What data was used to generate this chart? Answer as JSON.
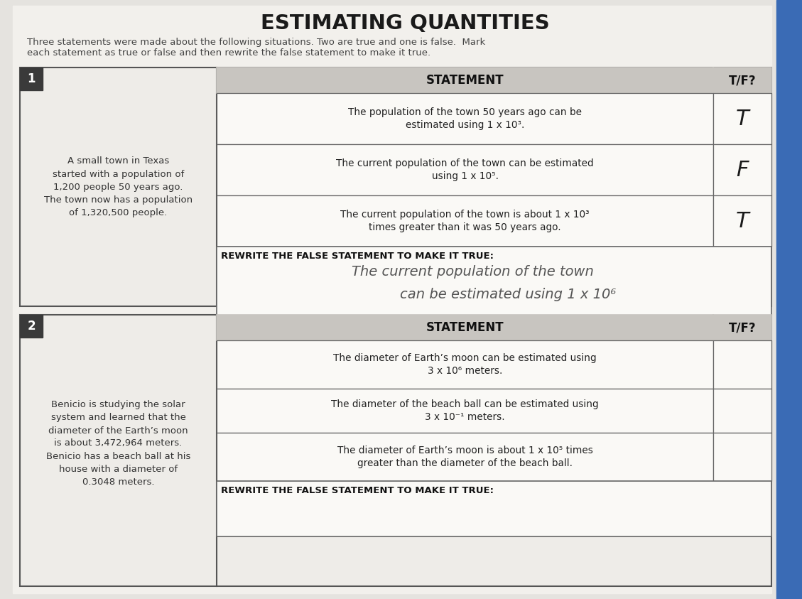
{
  "title": "ESTIMATING QUANTITIES",
  "subtitle_line1": "Three statements were made about the following situations. Two are true and one is false.  Mark",
  "subtitle_line2": "each statement as true or false and then rewrite the false statement to make it true.",
  "bg_color": "#e8e6e2",
  "section1": {
    "number": "1",
    "context_lines": [
      "A small town in Texas",
      "started with a population of",
      "1,200 people 50 years ago.",
      "The town now has a population",
      "of 1,320,500 people."
    ],
    "col_header1": "STATEMENT",
    "col_header2": "T/F?",
    "statements": [
      {
        "text_lines": [
          "The population of the town 50 years ago can be",
          "estimated using 1 x 10³."
        ],
        "tf": "T"
      },
      {
        "text_lines": [
          "The current population of the town can be estimated",
          "using 1 x 10⁵."
        ],
        "tf": "F"
      },
      {
        "text_lines": [
          "The current population of the town is about 1 x 10³",
          "times greater than it was 50 years ago."
        ],
        "tf": "T"
      }
    ],
    "rewrite_label": "REWRITE THE FALSE STATEMENT TO MAKE IT TRUE:",
    "rewrite_line1": "The current population of the town",
    "rewrite_line2": "can be estimated using 1 x 10⁶"
  },
  "section2": {
    "number": "2",
    "context_lines": [
      "Benicio is studying the solar",
      "system and learned that the",
      "diameter of the Earth’s moon",
      "is about 3,472,964 meters.",
      "Benicio has a beach ball at his",
      "house with a diameter of",
      "0.3048 meters."
    ],
    "col_header1": "STATEMENT",
    "col_header2": "T/F?",
    "statements": [
      {
        "text_lines": [
          "The diameter of Earth’s moon can be estimated using",
          "3 x 10⁶ meters."
        ],
        "tf": ""
      },
      {
        "text_lines": [
          "The diameter of the beach ball can be estimated using",
          "3 x 10⁻¹ meters."
        ],
        "tf": ""
      },
      {
        "text_lines": [
          "The diameter of Earth’s moon is about 1 x 10⁵ times",
          "greater than the diameter of the beach ball."
        ],
        "tf": ""
      }
    ],
    "rewrite_label": "REWRITE THE FALSE STATEMENT TO MAKE IT TRUE:",
    "rewrite_lines": []
  }
}
